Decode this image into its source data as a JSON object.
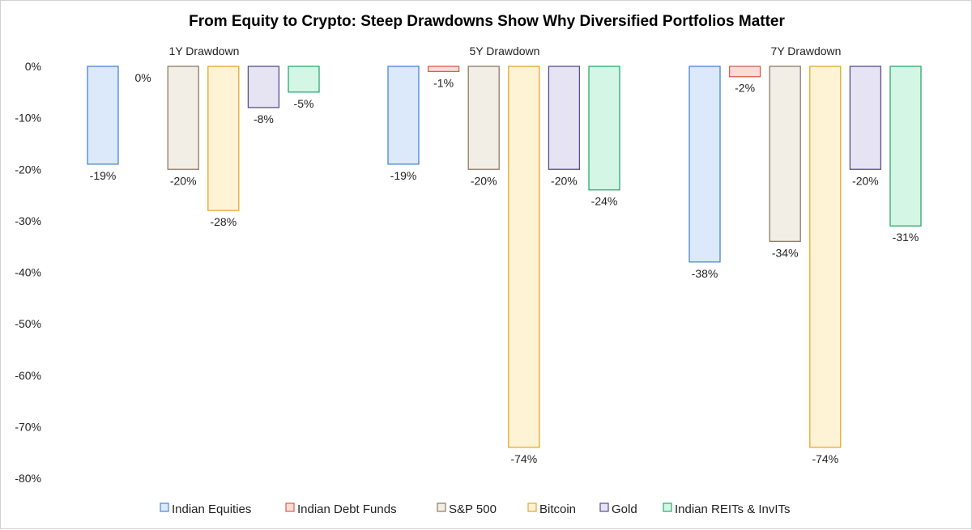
{
  "chart_data": {
    "type": "bar",
    "title": "From Equity to Crypto: Steep Drawdowns Show Why Diversified Portfolios Matter",
    "categories": [
      "1Y Drawdown",
      "5Y Drawdown",
      "7Y Drawdown"
    ],
    "series": [
      {
        "name": "Indian Equities",
        "values": [
          -19,
          -19,
          -38
        ],
        "labels": [
          "-19%",
          "-19%",
          "-38%"
        ],
        "fill": "#dbe9fb",
        "stroke": "#4a86d4"
      },
      {
        "name": "Indian Debt Funds",
        "values": [
          0,
          -1,
          -2
        ],
        "labels": [
          "0%",
          "-1%",
          "-2%"
        ],
        "fill": "#f9dcd6",
        "stroke": "#d95f4b"
      },
      {
        "name": "S&P 500",
        "values": [
          -20,
          -20,
          -34
        ],
        "labels": [
          "-20%",
          "-20%",
          "-34%"
        ],
        "fill": "#f2eee6",
        "stroke": "#8c7b66"
      },
      {
        "name": "Bitcoin",
        "values": [
          -28,
          -74,
          -74
        ],
        "labels": [
          "-28%",
          "-74%",
          "-74%"
        ],
        "fill": "#fff3d6",
        "stroke": "#e0a92a"
      },
      {
        "name": "Gold",
        "values": [
          -8,
          -20,
          -20
        ],
        "labels": [
          "-8%",
          "-20%",
          "-20%"
        ],
        "fill": "#e6e3f3",
        "stroke": "#5a4c92"
      },
      {
        "name": "Indian REITs & InvITs",
        "values": [
          -5,
          -24,
          -31
        ],
        "labels": [
          "-5%",
          "-24%",
          "-31%"
        ],
        "fill": "#d3f6e5",
        "stroke": "#2aaa6e"
      }
    ],
    "ylim": [
      -80,
      0
    ],
    "yticks": [
      "0%",
      "-10%",
      "-20%",
      "-30%",
      "-40%",
      "-50%",
      "-60%",
      "-70%",
      "-80%"
    ],
    "ylabel": "",
    "xlabel": "",
    "grid": false,
    "legend": "bottom"
  }
}
